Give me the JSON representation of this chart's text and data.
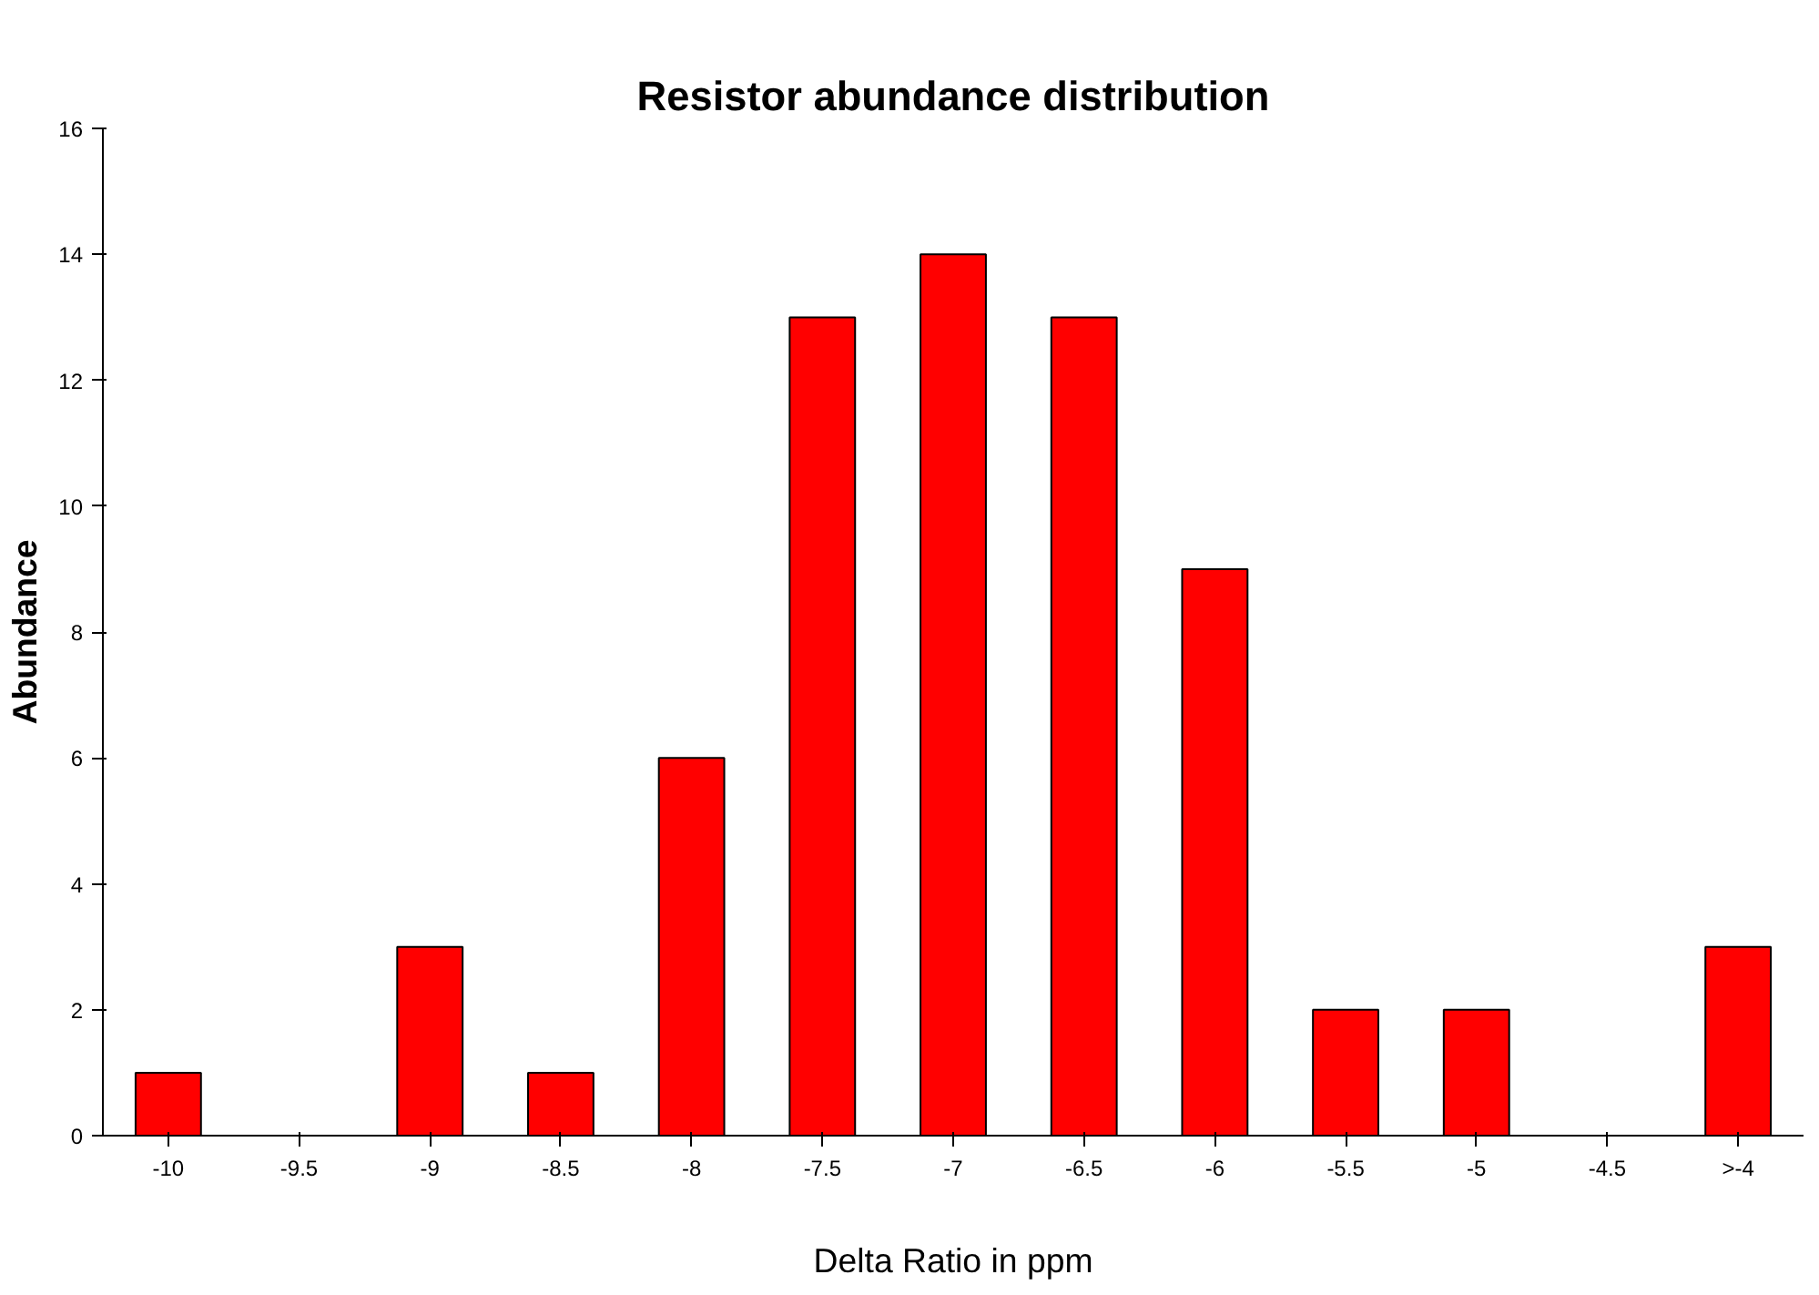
{
  "chart_data": {
    "type": "bar",
    "title": "Resistor abundance distribution",
    "xlabel": "Delta Ratio in ppm",
    "ylabel": "Abundance",
    "categories": [
      "-10",
      "-9.5",
      "-9",
      "-8.5",
      "-8",
      "-7.5",
      "-7",
      "-6.5",
      "-6",
      "-5.5",
      "-5",
      "-4.5",
      ">-4"
    ],
    "values": [
      1,
      0,
      3,
      1,
      6,
      13,
      14,
      13,
      9,
      2,
      2,
      0,
      3
    ],
    "color": "#ff0000",
    "ylim": [
      0,
      16
    ],
    "yticks": [
      0,
      2,
      4,
      6,
      8,
      10,
      12,
      14,
      16
    ],
    "grid": false
  }
}
